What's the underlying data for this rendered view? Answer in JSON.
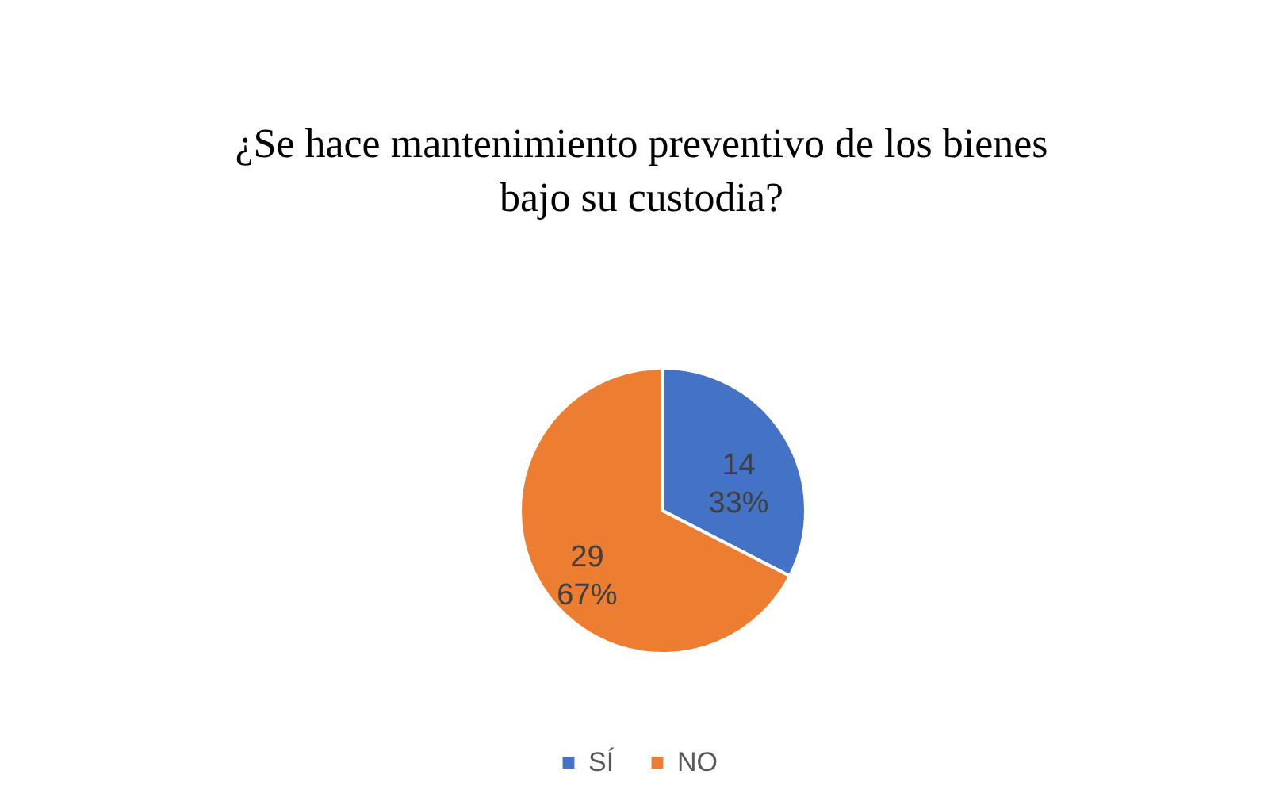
{
  "chart_data": {
    "type": "pie",
    "title": "¿Se hace mantenimiento preventivo de los bienes bajo su custodia?",
    "categories": [
      "SÍ",
      "NO"
    ],
    "values": [
      14,
      29
    ],
    "colors": [
      "#4472c4",
      "#ed7d31"
    ],
    "value_labels": [
      "14\n33%",
      "29\n67%"
    ],
    "legend": "bottom"
  }
}
